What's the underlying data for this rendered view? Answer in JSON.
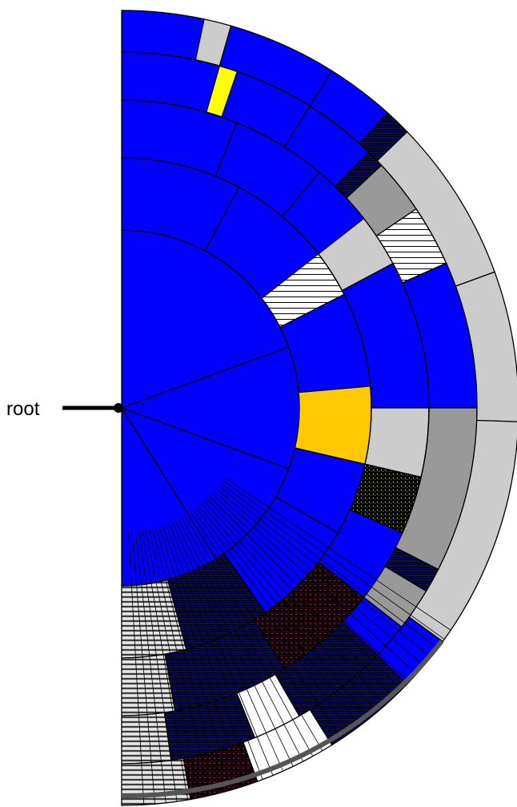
{
  "diagram": {
    "type": "radial-partition",
    "root_label": "root",
    "colors": {
      "primary": "#0000ff",
      "highlight_orange": "#ffc800",
      "highlight_yellow": "#ffff00",
      "light_gray": "#cccccc",
      "mid_gray": "#999999",
      "empty": "#ffffff",
      "dense": "#000000",
      "outline": "#000000"
    }
  }
}
